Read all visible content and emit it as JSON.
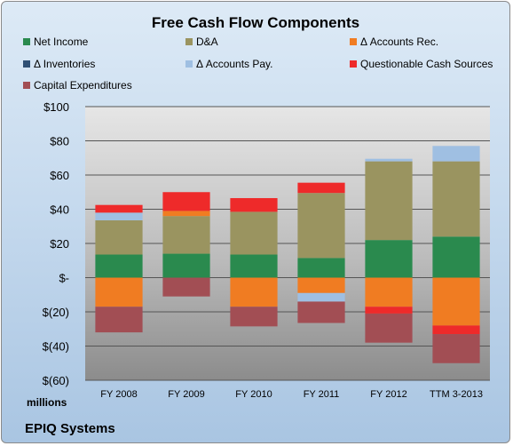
{
  "chart_data": {
    "type": "bar",
    "stacked": true,
    "title": "Free Cash Flow Components",
    "unit_label": "millions",
    "footer": "EPIQ Systems",
    "categories": [
      "FY 2008",
      "FY 2009",
      "FY 2010",
      "FY 2011",
      "FY 2012",
      "TTM 3-2013"
    ],
    "ylim": [
      -60,
      100
    ],
    "yticks": [
      {
        "value": 100,
        "label": "$100"
      },
      {
        "value": 80,
        "label": "$80"
      },
      {
        "value": 60,
        "label": "$60"
      },
      {
        "value": 40,
        "label": "$40"
      },
      {
        "value": 20,
        "label": "$20"
      },
      {
        "value": 0,
        "label": "$-"
      },
      {
        "value": -20,
        "label": "$(20)"
      },
      {
        "value": -40,
        "label": "$(40)"
      },
      {
        "value": -60,
        "label": "$(60)"
      }
    ],
    "grid": true,
    "legend_position": "top",
    "series": [
      {
        "name": "Net Income",
        "color": "#2a8a4e",
        "values": [
          13.5,
          14,
          13.5,
          11.5,
          22,
          24
        ]
      },
      {
        "name": "D&A",
        "color": "#9a9460",
        "values": [
          20,
          22,
          25,
          38,
          46,
          44
        ]
      },
      {
        "name": "Δ Accounts Rec.",
        "color": "#f07c22",
        "values": [
          -17,
          3,
          -17,
          -9,
          -17,
          -28
        ]
      },
      {
        "name": "Δ Inventories",
        "color": "#2f4f74",
        "values": [
          0,
          0,
          0,
          0,
          0,
          0
        ]
      },
      {
        "name": "Δ Accounts Pay.",
        "color": "#9fbfe2",
        "values": [
          4.5,
          0,
          0,
          -5,
          1.5,
          9
        ]
      },
      {
        "name": "Questionable Cash Sources",
        "color": "#ee2a2a",
        "values": [
          4.5,
          11,
          8,
          6,
          -4,
          -5
        ]
      },
      {
        "name": "Capital Expenditures",
        "color": "#a24e54",
        "values": [
          -15,
          -11,
          -11.5,
          -12.5,
          -17,
          -17
        ]
      }
    ]
  }
}
